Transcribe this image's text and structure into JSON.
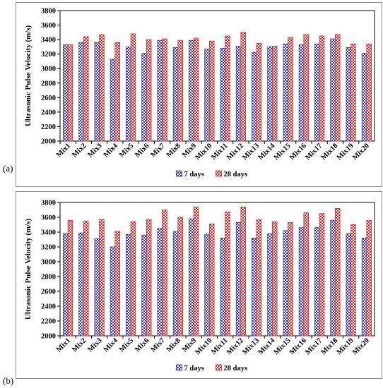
{
  "panels": [
    {
      "letter": "(a)",
      "chart_data": {
        "type": "bar",
        "title": "",
        "xlabel": "",
        "ylabel": "Ultrasonic Pulse Velocity (m/s)",
        "ylim": [
          2000,
          3800
        ],
        "yticks": [
          2000,
          2200,
          2400,
          2600,
          2800,
          3000,
          3200,
          3400,
          3600,
          3800
        ],
        "categories": [
          "Mix1",
          "Mix2",
          "Mix3",
          "Mix4",
          "Mix5",
          "Mix6",
          "Mix7",
          "Mix8",
          "Mix9",
          "Mix10",
          "Mix11",
          "Mix12",
          "Mix13",
          "Mix14",
          "Mix15",
          "Mix16",
          "Mix17",
          "Mix18",
          "Mix19",
          "Mix20"
        ],
        "series": [
          {
            "name": "7 days",
            "color": "#3333cc",
            "values": [
              3330,
              3360,
              3360,
              3130,
              3300,
              3210,
              3390,
              3290,
              3390,
              3270,
              3280,
              3310,
              3220,
              3300,
              3340,
              3330,
              3340,
              3410,
              3290,
              3210
            ]
          },
          {
            "name": "28 days",
            "color": "#e02020",
            "values": [
              3330,
              3440,
              3470,
              3360,
              3480,
              3400,
              3410,
              3390,
              3420,
              3380,
              3450,
              3500,
              3350,
              3310,
              3430,
              3470,
              3450,
              3470,
              3340,
              3340
            ]
          }
        ],
        "grid": false,
        "legend": "bottom"
      }
    },
    {
      "letter": "(b)",
      "chart_data": {
        "type": "bar",
        "title": "",
        "xlabel": "",
        "ylabel": "Ultrasonic Pulse Velocity (m/s)",
        "ylim": [
          2000,
          3800
        ],
        "yticks": [
          2000,
          2200,
          2400,
          2600,
          2800,
          3000,
          3200,
          3400,
          3600,
          3800
        ],
        "categories": [
          "Mix1",
          "Mix2",
          "Mix3",
          "Mix4",
          "Mix5",
          "Mix6",
          "Mix7",
          "Mix8",
          "Mix9",
          "Mix10",
          "Mix11",
          "Mix12",
          "Mix13",
          "Mix14",
          "Mix15",
          "Mix16",
          "Mix17",
          "Mix18",
          "Mix19",
          "Mix20"
        ],
        "series": [
          {
            "name": "7 days",
            "color": "#3333cc",
            "values": [
              3380,
              3390,
              3310,
              3200,
              3370,
              3360,
              3450,
              3410,
              3580,
              3370,
              3320,
              3530,
              3320,
              3380,
              3420,
              3460,
              3460,
              3560,
              3380,
              3320
            ]
          },
          {
            "name": "28 days",
            "color": "#e02020",
            "values": [
              3560,
              3550,
              3570,
              3410,
              3540,
              3570,
              3700,
              3600,
              3740,
              3510,
              3670,
              3740,
              3570,
              3540,
              3530,
              3660,
              3650,
              3720,
              3500,
              3560
            ]
          }
        ],
        "grid": false,
        "legend": "bottom"
      }
    }
  ]
}
